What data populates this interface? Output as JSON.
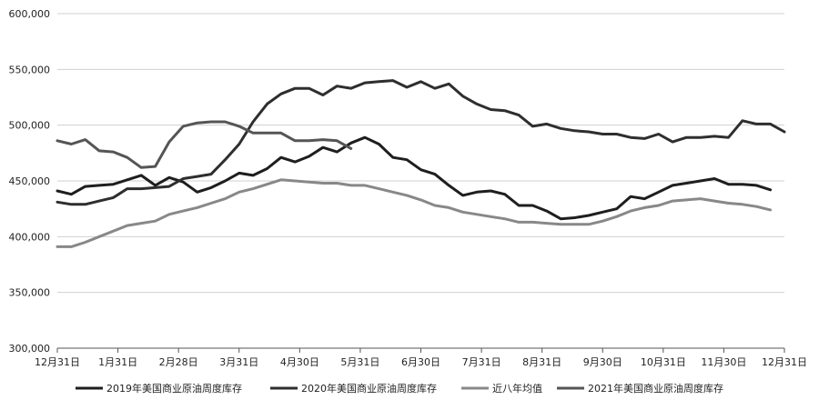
{
  "chart_data": {
    "type": "line",
    "title": "",
    "xlabel": "",
    "ylabel": "",
    "ylim": [
      300000,
      600000
    ],
    "y_ticks": [
      300000,
      350000,
      400000,
      450000,
      500000,
      550000,
      600000
    ],
    "y_tick_labels": [
      "300,000",
      "350,000",
      "400,000",
      "450,000",
      "500,000",
      "550,000",
      "600,000"
    ],
    "x_tick_labels": [
      "12月31日",
      "1月31日",
      "2月28日",
      "3月31日",
      "4月30日",
      "5月31日",
      "6月30日",
      "7月31日",
      "8月31日",
      "9月30日",
      "10月31日",
      "11月30日",
      "12月31日"
    ],
    "x_unit": "week index (0 = 12月31日, 52 = 12月31日)",
    "grid": "horizontal",
    "legend_position": "bottom",
    "series": [
      {
        "name": "2019年美国商业原油周度库存",
        "color": "#1e1e1e",
        "points": [
          [
            0,
            441000
          ],
          [
            1,
            438000
          ],
          [
            2,
            445000
          ],
          [
            3,
            446000
          ],
          [
            4,
            447000
          ],
          [
            5,
            451000
          ],
          [
            6,
            455000
          ],
          [
            7,
            446000
          ],
          [
            8,
            453000
          ],
          [
            9,
            449000
          ],
          [
            10,
            440000
          ],
          [
            11,
            444000
          ],
          [
            12,
            450000
          ],
          [
            13,
            457000
          ],
          [
            14,
            455000
          ],
          [
            15,
            461000
          ],
          [
            16,
            471000
          ],
          [
            17,
            467000
          ],
          [
            18,
            472000
          ],
          [
            19,
            480000
          ],
          [
            20,
            476000
          ],
          [
            21,
            484000
          ],
          [
            22,
            489000
          ],
          [
            23,
            483000
          ],
          [
            24,
            471000
          ],
          [
            25,
            469000
          ],
          [
            26,
            460000
          ],
          [
            27,
            456000
          ],
          [
            28,
            446000
          ],
          [
            29,
            437000
          ],
          [
            30,
            440000
          ],
          [
            31,
            441000
          ],
          [
            32,
            438000
          ],
          [
            33,
            428000
          ],
          [
            34,
            428000
          ],
          [
            35,
            423000
          ],
          [
            36,
            416000
          ],
          [
            37,
            417000
          ],
          [
            38,
            419000
          ],
          [
            39,
            422000
          ],
          [
            40,
            425000
          ],
          [
            41,
            436000
          ],
          [
            42,
            434000
          ],
          [
            43,
            440000
          ],
          [
            44,
            446000
          ],
          [
            45,
            448000
          ],
          [
            46,
            450000
          ],
          [
            47,
            452000
          ],
          [
            48,
            447000
          ],
          [
            49,
            447000
          ],
          [
            50,
            446000
          ],
          [
            51,
            442000
          ]
        ]
      },
      {
        "name": "2020年美国商业原油周度库存",
        "color": "#2e2e2e",
        "points": [
          [
            0,
            431000
          ],
          [
            1,
            429000
          ],
          [
            2,
            429000
          ],
          [
            3,
            432000
          ],
          [
            4,
            435000
          ],
          [
            5,
            443000
          ],
          [
            6,
            443000
          ],
          [
            7,
            444000
          ],
          [
            8,
            445000
          ],
          [
            9,
            452000
          ],
          [
            10,
            454000
          ],
          [
            11,
            456000
          ],
          [
            12,
            469000
          ],
          [
            13,
            483000
          ],
          [
            14,
            503000
          ],
          [
            15,
            519000
          ],
          [
            16,
            528000
          ],
          [
            17,
            533000
          ],
          [
            18,
            533000
          ],
          [
            19,
            527000
          ],
          [
            20,
            535000
          ],
          [
            21,
            533000
          ],
          [
            22,
            538000
          ],
          [
            23,
            539000
          ],
          [
            24,
            540000
          ],
          [
            25,
            534000
          ],
          [
            26,
            539000
          ],
          [
            27,
            533000
          ],
          [
            28,
            537000
          ],
          [
            29,
            526000
          ],
          [
            30,
            519000
          ],
          [
            31,
            514000
          ],
          [
            32,
            513000
          ],
          [
            33,
            509000
          ],
          [
            34,
            499000
          ],
          [
            35,
            501000
          ],
          [
            36,
            497000
          ],
          [
            37,
            495000
          ],
          [
            38,
            494000
          ],
          [
            39,
            492000
          ],
          [
            40,
            492000
          ],
          [
            41,
            489000
          ],
          [
            42,
            488000
          ],
          [
            43,
            492000
          ],
          [
            44,
            485000
          ],
          [
            45,
            489000
          ],
          [
            46,
            489000
          ],
          [
            47,
            490000
          ],
          [
            48,
            489000
          ],
          [
            49,
            504000
          ],
          [
            50,
            501000
          ],
          [
            51,
            501000
          ],
          [
            52,
            494000
          ]
        ]
      },
      {
        "name": "近八年均值",
        "color": "#888888",
        "points": [
          [
            0,
            391000
          ],
          [
            1,
            391000
          ],
          [
            2,
            395000
          ],
          [
            3,
            400000
          ],
          [
            4,
            405000
          ],
          [
            5,
            410000
          ],
          [
            6,
            412000
          ],
          [
            7,
            414000
          ],
          [
            8,
            420000
          ],
          [
            9,
            423000
          ],
          [
            10,
            426000
          ],
          [
            11,
            430000
          ],
          [
            12,
            434000
          ],
          [
            13,
            440000
          ],
          [
            14,
            443000
          ],
          [
            15,
            447000
          ],
          [
            16,
            451000
          ],
          [
            17,
            450000
          ],
          [
            18,
            449000
          ],
          [
            19,
            448000
          ],
          [
            20,
            448000
          ],
          [
            21,
            446000
          ],
          [
            22,
            446000
          ],
          [
            23,
            443000
          ],
          [
            24,
            440000
          ],
          [
            25,
            437000
          ],
          [
            26,
            433000
          ],
          [
            27,
            428000
          ],
          [
            28,
            426000
          ],
          [
            29,
            422000
          ],
          [
            30,
            420000
          ],
          [
            31,
            418000
          ],
          [
            32,
            416000
          ],
          [
            33,
            413000
          ],
          [
            34,
            413000
          ],
          [
            35,
            412000
          ],
          [
            36,
            411000
          ],
          [
            37,
            411000
          ],
          [
            38,
            411000
          ],
          [
            39,
            414000
          ],
          [
            40,
            418000
          ],
          [
            41,
            423000
          ],
          [
            42,
            426000
          ],
          [
            43,
            428000
          ],
          [
            44,
            432000
          ],
          [
            45,
            433000
          ],
          [
            46,
            434000
          ],
          [
            47,
            432000
          ],
          [
            48,
            430000
          ],
          [
            49,
            429000
          ],
          [
            50,
            427000
          ],
          [
            51,
            424000
          ]
        ]
      },
      {
        "name": "2021年美国商业原油周度库存",
        "color": "#555555",
        "points": [
          [
            0,
            486000
          ],
          [
            1,
            483000
          ],
          [
            2,
            487000
          ],
          [
            3,
            477000
          ],
          [
            4,
            476000
          ],
          [
            5,
            471000
          ],
          [
            6,
            462000
          ],
          [
            7,
            463000
          ],
          [
            8,
            485000
          ],
          [
            9,
            499000
          ],
          [
            10,
            502000
          ],
          [
            11,
            503000
          ],
          [
            12,
            503000
          ],
          [
            13,
            499000
          ],
          [
            14,
            493000
          ],
          [
            15,
            493000
          ],
          [
            16,
            493000
          ],
          [
            17,
            486000
          ],
          [
            18,
            486000
          ],
          [
            19,
            487000
          ],
          [
            20,
            486000
          ],
          [
            21,
            479000
          ]
        ]
      }
    ]
  }
}
